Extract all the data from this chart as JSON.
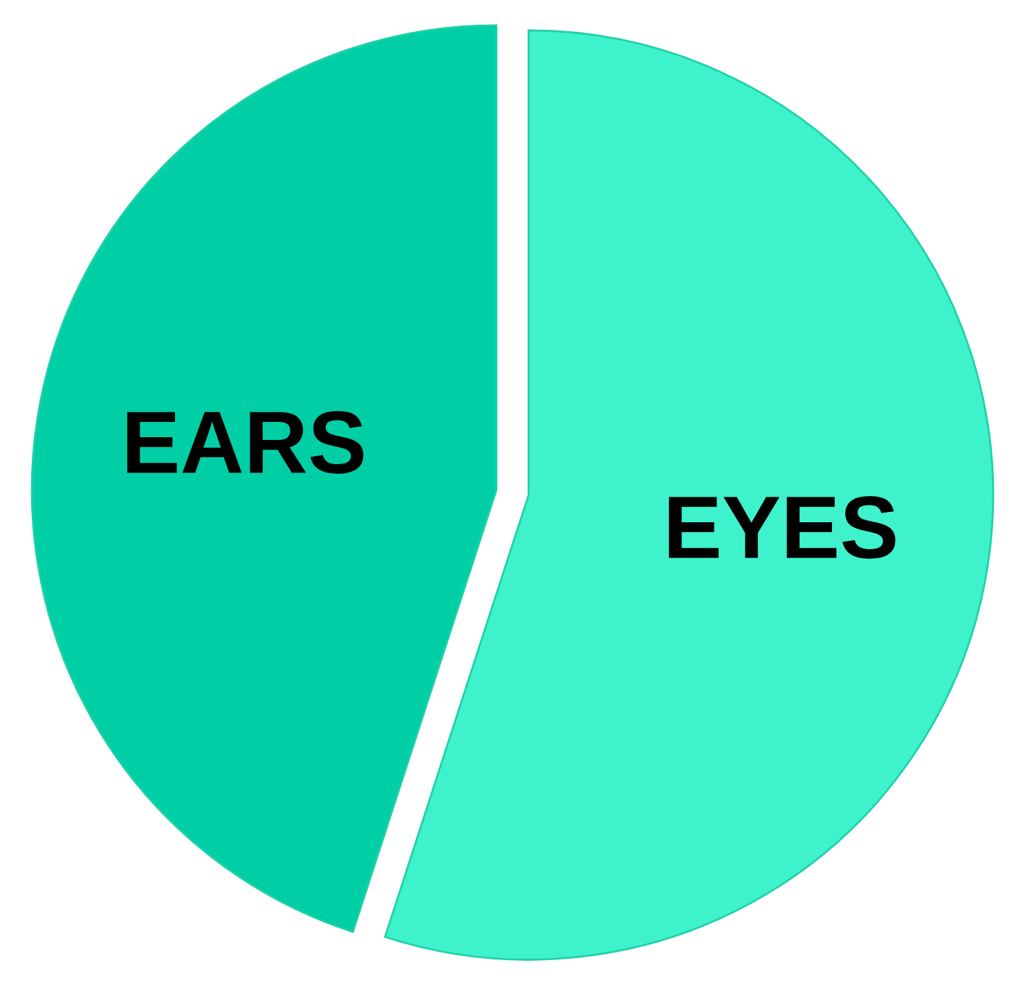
{
  "chart_data": {
    "type": "pie",
    "categories": [
      "EYES",
      "EARS"
    ],
    "values": [
      55,
      45
    ],
    "colors": [
      "#3ef2cc",
      "#00cfa6"
    ]
  }
}
